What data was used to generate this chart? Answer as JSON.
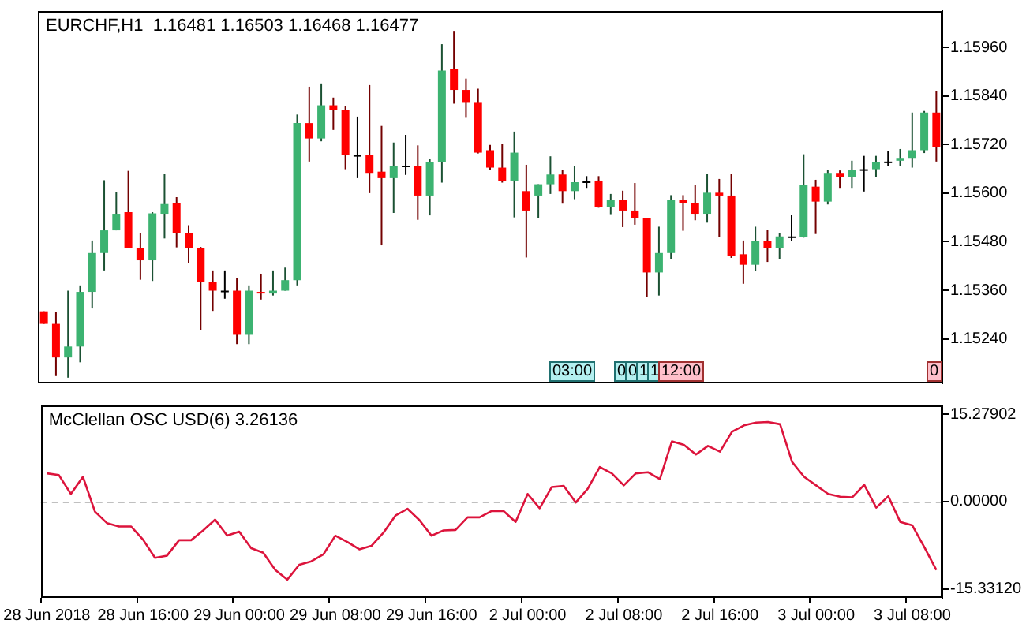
{
  "chart_data": [
    {
      "type": "candlestick",
      "title": "EURCHF,H1  1.16481 1.16503 1.16468 1.16477",
      "categories": [
        null,
        null,
        null,
        null,
        null,
        null,
        null,
        null,
        null,
        null,
        null,
        null,
        null,
        null,
        null,
        null,
        null,
        null,
        null,
        null,
        null,
        null,
        null,
        null,
        null,
        null,
        null,
        null,
        null,
        null,
        null,
        null,
        null,
        null,
        null,
        null,
        null,
        null,
        null,
        null,
        null,
        null,
        null,
        null,
        null,
        null,
        null,
        null,
        null,
        null,
        null,
        null,
        null,
        null,
        null,
        null,
        null,
        null,
        null,
        null,
        null,
        null,
        null,
        null,
        null,
        null,
        null,
        null,
        null,
        null,
        null,
        null,
        null,
        null,
        null
      ],
      "ohlc": [
        [
          1.15308,
          1.15308,
          1.15277,
          1.15277
        ],
        [
          1.15277,
          1.15306,
          1.15148,
          1.15194
        ],
        [
          1.15194,
          1.15359,
          1.15144,
          1.15221
        ],
        [
          1.15221,
          1.15372,
          1.15182,
          1.15356
        ],
        [
          1.15356,
          1.15483,
          1.15315,
          1.15452
        ],
        [
          1.15452,
          1.15632,
          1.15409,
          1.15508
        ],
        [
          1.15508,
          1.15602,
          1.15508,
          1.15549
        ],
        [
          1.15553,
          1.15655,
          1.15464,
          1.15464
        ],
        [
          1.15464,
          1.15502,
          1.15386,
          1.15434
        ],
        [
          1.15434,
          1.15553,
          1.15383,
          1.1555
        ],
        [
          1.15549,
          1.15647,
          1.15488,
          1.15573
        ],
        [
          1.15575,
          1.1559,
          1.15466,
          1.15501
        ],
        [
          1.15501,
          1.15521,
          1.15428,
          1.15464
        ],
        [
          1.15464,
          1.15467,
          1.15262,
          1.1538
        ],
        [
          1.1538,
          1.15409,
          1.15309,
          1.15359
        ],
        [
          1.15359,
          1.15409,
          1.15339,
          1.15359
        ],
        [
          1.15359,
          1.1539,
          1.15227,
          1.1525
        ],
        [
          1.1525,
          1.15372,
          1.15227,
          1.15359
        ],
        [
          1.15356,
          1.15401,
          1.15337,
          1.15352
        ],
        [
          1.15352,
          1.15409,
          1.15347,
          1.15359
        ],
        [
          1.15359,
          1.15416,
          1.15359,
          1.15385
        ],
        [
          1.15385,
          1.15794,
          1.15372,
          1.15773
        ],
        [
          1.15773,
          1.15863,
          1.15678,
          1.15735
        ],
        [
          1.15735,
          1.15871,
          1.15728,
          1.15817
        ],
        [
          1.15817,
          1.15836,
          1.15756,
          1.15806
        ],
        [
          1.15806,
          1.15815,
          1.15659,
          1.15694
        ],
        [
          1.15694,
          1.15789,
          1.15637,
          1.15694
        ],
        [
          1.15694,
          1.15867,
          1.156,
          1.1565
        ],
        [
          1.15653,
          1.15766,
          1.15471,
          1.15637
        ],
        [
          1.15637,
          1.15725,
          1.15551,
          1.15668
        ],
        [
          1.15668,
          1.15744,
          1.15645,
          1.15668
        ],
        [
          1.15668,
          1.15718,
          1.15534,
          1.15594
        ],
        [
          1.15594,
          1.15684,
          1.15545,
          1.15676
        ],
        [
          1.15676,
          1.15968,
          1.15626,
          1.15903
        ],
        [
          1.15907,
          1.16001,
          1.15821,
          1.15855
        ],
        [
          1.15855,
          1.15883,
          1.15788,
          1.15825
        ],
        [
          1.15825,
          1.15858,
          1.15698,
          1.157
        ],
        [
          1.15706,
          1.15719,
          1.15657,
          1.15663
        ],
        [
          1.15663,
          1.15722,
          1.15626,
          1.15629
        ],
        [
          1.15631,
          1.15752,
          1.1554,
          1.157
        ],
        [
          1.15605,
          1.1567,
          1.15441,
          1.15557
        ],
        [
          1.15594,
          1.15622,
          1.15538,
          1.15622
        ],
        [
          1.15622,
          1.15691,
          1.15598,
          1.15646
        ],
        [
          1.15646,
          1.15657,
          1.15574,
          1.15605
        ],
        [
          1.15605,
          1.15666,
          1.15585,
          1.15627
        ],
        [
          1.15629,
          1.15642,
          1.15613,
          1.15629
        ],
        [
          1.15631,
          1.15642,
          1.15564,
          1.15566
        ],
        [
          1.15566,
          1.15598,
          1.15548,
          1.15583
        ],
        [
          1.15583,
          1.15606,
          1.15516,
          1.15557
        ],
        [
          1.15557,
          1.15625,
          1.15522,
          1.15538
        ],
        [
          1.15538,
          1.15538,
          1.15343,
          1.15404
        ],
        [
          1.15404,
          1.15517,
          1.15347,
          1.15452
        ],
        [
          1.15452,
          1.15595,
          1.15436,
          1.15583
        ],
        [
          1.15583,
          1.15595,
          1.15507,
          1.15575
        ],
        [
          1.15575,
          1.1562,
          1.15533,
          1.15549
        ],
        [
          1.15549,
          1.15647,
          1.15527,
          1.15601
        ],
        [
          1.15601,
          1.15635,
          1.15492,
          1.15594
        ],
        [
          1.15594,
          1.15647,
          1.1544,
          1.15445
        ],
        [
          1.15449,
          1.15483,
          1.15376,
          1.15423
        ],
        [
          1.15423,
          1.15517,
          1.15408,
          1.15482
        ],
        [
          1.15482,
          1.15509,
          1.1543,
          1.15464
        ],
        [
          1.15464,
          1.15501,
          1.15436,
          1.15493
        ],
        [
          1.15493,
          1.15547,
          1.15482,
          1.15493
        ],
        [
          1.15492,
          1.15696,
          1.1549,
          1.1562
        ],
        [
          1.15616,
          1.15633,
          1.15499,
          1.15579
        ],
        [
          1.15579,
          1.15657,
          1.15572,
          1.1565
        ],
        [
          1.1565,
          1.15656,
          1.15613,
          1.15639
        ],
        [
          1.15639,
          1.1568,
          1.15613,
          1.15657
        ],
        [
          1.15659,
          1.15692,
          1.15604,
          1.15659
        ],
        [
          1.15659,
          1.15692,
          1.15639,
          1.15676
        ],
        [
          1.15678,
          1.15703,
          1.15668,
          1.15678
        ],
        [
          1.1568,
          1.15709,
          1.15668,
          1.15687
        ],
        [
          1.15687,
          1.15799,
          1.15663,
          1.15706
        ],
        [
          1.15706,
          1.15803,
          1.15699,
          1.15799
        ],
        [
          1.15799,
          1.15852,
          1.15678,
          1.15713
        ]
      ],
      "colors": [
        "#ff0000",
        "#ff0000",
        "#3cb371",
        "#3cb371",
        "#3cb371",
        "#3cb371",
        "#3cb371",
        "#ff0000",
        "#ff0000",
        "#3cb371",
        "#3cb371",
        "#ff0000",
        "#ff0000",
        "#ff0000",
        "#ff0000",
        "#000000",
        "#ff0000",
        "#3cb371",
        "#ff0000",
        "#3cb371",
        "#3cb371",
        "#3cb371",
        "#ff0000",
        "#3cb371",
        "#ff0000",
        "#ff0000",
        "#000000",
        "#ff0000",
        "#ff0000",
        "#3cb371",
        "#000000",
        "#ff0000",
        "#3cb371",
        "#3cb371",
        "#ff0000",
        "#ff0000",
        "#ff0000",
        "#ff0000",
        "#ff0000",
        "#3cb371",
        "#ff0000",
        "#3cb371",
        "#3cb371",
        "#ff0000",
        "#3cb371",
        "#000000",
        "#ff0000",
        "#3cb371",
        "#ff0000",
        "#ff0000",
        "#ff0000",
        "#3cb371",
        "#3cb371",
        "#ff0000",
        "#ff0000",
        "#3cb371",
        "#ff0000",
        "#ff0000",
        "#ff0000",
        "#3cb371",
        "#ff0000",
        "#3cb371",
        "#000000",
        "#3cb371",
        "#ff0000",
        "#3cb371",
        "#ff0000",
        "#3cb371",
        "#000000",
        "#3cb371",
        "#000000",
        "#3cb371",
        "#3cb371",
        "#3cb371",
        "#ff0000"
      ],
      "ylim": [
        1.1513,
        1.1605
      ],
      "yticks": [
        {
          "value": 1.1596,
          "label": "1.15960"
        },
        {
          "value": 1.1584,
          "label": "1.15840"
        },
        {
          "value": 1.1572,
          "label": "1.15720"
        },
        {
          "value": 1.156,
          "label": "1.15600"
        },
        {
          "value": 1.1548,
          "label": "1.15480"
        },
        {
          "value": 1.1536,
          "label": "1.15360"
        },
        {
          "value": 1.1524,
          "label": "1.15240"
        }
      ],
      "tick_labels": "y",
      "annotations": [
        "03:00",
        "0",
        "0",
        "1",
        "1",
        "12:00",
        "0"
      ]
    },
    {
      "type": "line",
      "title": "McClellan OSC USD(6) 3.26136",
      "categories": [
        "28 Jun 2018",
        null,
        null,
        null,
        null,
        null,
        null,
        null,
        "28 Jun 16:00",
        null,
        null,
        null,
        null,
        null,
        null,
        null,
        "29 Jun 00:00",
        null,
        null,
        null,
        null,
        null,
        null,
        null,
        "29 Jun 08:00",
        null,
        null,
        null,
        null,
        null,
        null,
        null,
        "29 Jun 16:00",
        null,
        null,
        null,
        null,
        null,
        null,
        null,
        "2 Jul 00:00",
        null,
        null,
        null,
        null,
        null,
        null,
        null,
        "2 Jul 08:00",
        null,
        null,
        null,
        null,
        null,
        null,
        null,
        "2 Jul 16:00",
        null,
        null,
        null,
        null,
        null,
        null,
        null,
        "3 Jul 00:00",
        null,
        null,
        null,
        null,
        null,
        null,
        null,
        "3 Jul 08:00",
        null,
        null
      ],
      "values": [
        4.9,
        4.6,
        1.3,
        4.3,
        -1.8,
        -3.8,
        -4.4,
        -4.4,
        -6.7,
        -9.9,
        -9.5,
        -6.8,
        -6.8,
        -5.1,
        -3.2,
        -6.0,
        -5.3,
        -8.2,
        -9.0,
        -12.0,
        -13.7,
        -11.1,
        -10.5,
        -9.3,
        -6.0,
        -7.1,
        -8.4,
        -7.8,
        -5.5,
        -2.5,
        -1.3,
        -3.3,
        -6.0,
        -5.1,
        -5.0,
        -2.8,
        -2.8,
        -1.7,
        -1.7,
        -3.6,
        1.3,
        -1.2,
        2.5,
        2.7,
        -0.2,
        2.2,
        6.0,
        4.9,
        2.8,
        4.9,
        5.1,
        3.9,
        10.5,
        9.9,
        8.2,
        9.7,
        8.7,
        12.2,
        13.3,
        13.8,
        13.9,
        13.5,
        6.9,
        4.3,
        2.8,
        1.3,
        0.8,
        0.7,
        2.9,
        -1.1,
        0.9,
        -3.6,
        -4.2,
        -8.0,
        -12.0
      ],
      "color": "#dc143c",
      "ylim": [
        -16.9,
        16.8
      ],
      "yticks": [
        15.27902,
        {
          "value": 0,
          "label": "0.00000"
        },
        {
          "value": -15.3312,
          "label": "-15.33120"
        }
      ],
      "ref_lines": [
        {
          "axis": "y",
          "value": 0,
          "color": "#c0c0c0",
          "line_style": "dashed"
        }
      ]
    }
  ]
}
